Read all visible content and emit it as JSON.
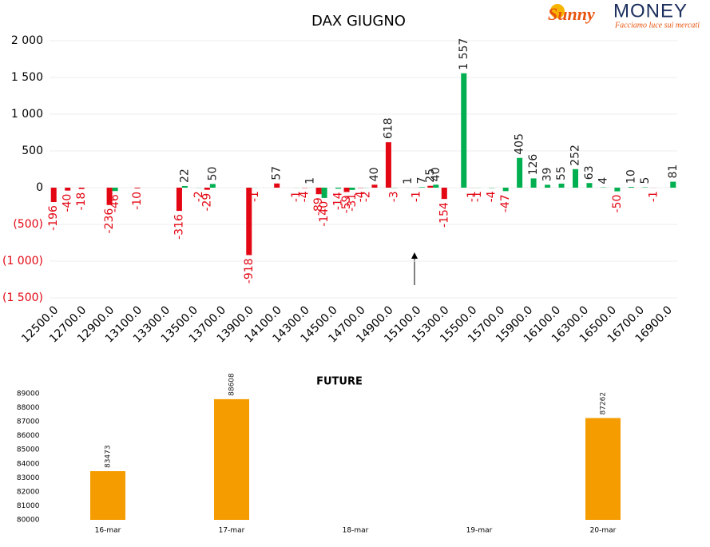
{
  "logo": {
    "brand": "Sunny",
    "brand2": "MONEY",
    "tagline": "Facciamo luce sui mercati"
  },
  "chart_data": [
    {
      "type": "bar",
      "title": "DAX GIUGNO",
      "categories": [
        "12500.0",
        null,
        "12700.0",
        null,
        "12900.0",
        null,
        "13100.0",
        null,
        "13300.0",
        null,
        "13500.0",
        null,
        "13700.0",
        null,
        "13900.0",
        null,
        "14100.0",
        null,
        "14300.0",
        null,
        "14500.0",
        null,
        "14700.0",
        null,
        "14900.0",
        null,
        "15100.0",
        null,
        "15300.0",
        null,
        "15500.0",
        null,
        "15700.0",
        null,
        "15900.0",
        null,
        "16100.0",
        null,
        "16300.0",
        null,
        "16500.0",
        null,
        "16700.0",
        null,
        "16900.0"
      ],
      "series": [
        {
          "color": "#e30613",
          "values": [
            -196,
            -40,
            -18,
            null,
            -236,
            null,
            -10,
            null,
            null,
            -316,
            null,
            -29,
            null,
            null,
            -918,
            null,
            57,
            null,
            -4,
            -89,
            null,
            -59,
            -4,
            40,
            618,
            null,
            -1,
            25,
            -154,
            null,
            -1,
            null,
            null,
            null,
            null,
            null,
            null,
            null,
            null,
            null,
            null,
            null,
            null,
            -1,
            null
          ]
        },
        {
          "color": "#00b050",
          "values": [
            null,
            null,
            null,
            null,
            -46,
            null,
            null,
            null,
            null,
            22,
            -2,
            50,
            null,
            null,
            -1,
            null,
            null,
            -1,
            1,
            -140,
            -14,
            -31,
            -2,
            null,
            -3,
            1,
            7,
            40,
            null,
            1557,
            -1,
            -4,
            -47,
            405,
            126,
            39,
            55,
            252,
            63,
            4,
            -50,
            10,
            5,
            null,
            81
          ],
          "value_labels": [
            null,
            null,
            null,
            null,
            "-46",
            null,
            null,
            null,
            null,
            "22",
            "-2",
            "50",
            null,
            null,
            "-1",
            null,
            null,
            "-1",
            "1",
            "-140",
            "-14",
            "-31",
            "-2",
            null,
            "-3",
            "1",
            "7",
            "40",
            null,
            "1 557",
            "-1",
            "-4",
            "-47",
            "405",
            "126",
            "39",
            "55",
            "252",
            "63",
            "4",
            "-50",
            "10",
            "5",
            null,
            "81"
          ]
        }
      ],
      "ylim": [
        -1500,
        2000
      ],
      "yticks": [
        {
          "value": 2000,
          "label": "2 000"
        },
        {
          "value": 1500,
          "label": "1 500"
        },
        {
          "value": 1000,
          "label": "1 000"
        },
        500,
        0,
        {
          "value": -500,
          "label": "(500)"
        },
        {
          "value": -1000,
          "label": "(1 000)"
        },
        {
          "value": -1500,
          "label": "(1 500)"
        }
      ],
      "grid": true
    },
    {
      "type": "bar",
      "title": "FUTURE",
      "categories": [
        "16-mar",
        "17-mar",
        "18-mar",
        "19-mar",
        "20-mar"
      ],
      "values": [
        83473,
        88608,
        null,
        null,
        87262
      ],
      "color": "#f59c00",
      "ylim": [
        80000,
        89000
      ],
      "yticks": [
        80000,
        81000,
        82000,
        83000,
        84000,
        85000,
        86000,
        87000,
        88000,
        89000
      ],
      "grid": false
    }
  ]
}
